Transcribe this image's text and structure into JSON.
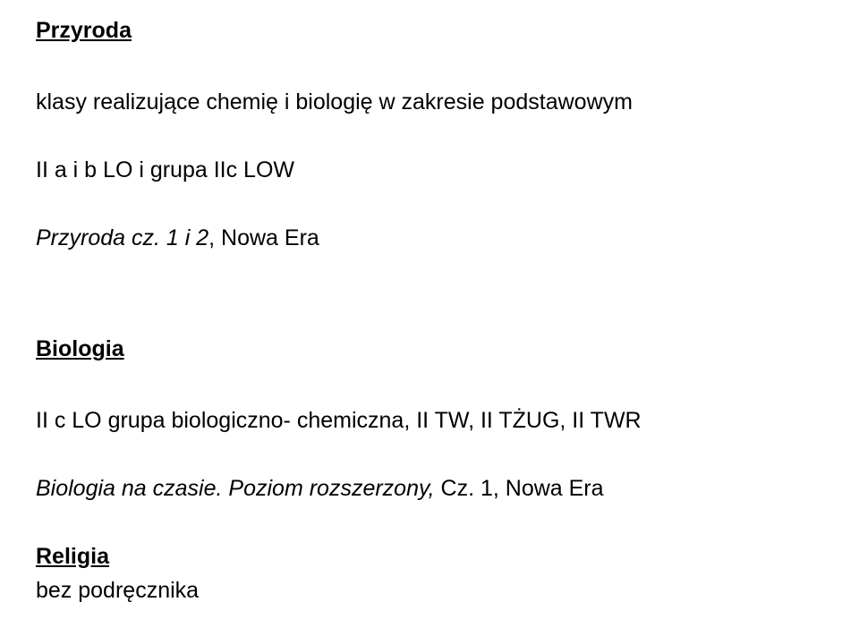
{
  "doc": {
    "font_family": "Verdana, Tahoma, Geneva, sans-serif",
    "font_size_pt": 19,
    "text_color": "#000000",
    "background_color": "#ffffff"
  },
  "section1": {
    "heading": "Przyroda",
    "line1": "klasy realizujące chemię i biologię w zakresie podstawowym",
    "line2": "II a i b LO i grupa IIc LOW",
    "book_italic": "Przyroda cz. 1 i 2",
    "book_rest": ", Nowa Era"
  },
  "section2": {
    "heading": "Biologia",
    "line1": "II c LO grupa biologiczno- chemiczna, II TW, II TŻUG, II TWR",
    "book_italic": "Biologia na czasie. Poziom rozszerzony,",
    "book_rest": " Cz. 1, Nowa Era"
  },
  "section3": {
    "heading": "Religia",
    "line1": "bez podręcznika"
  }
}
